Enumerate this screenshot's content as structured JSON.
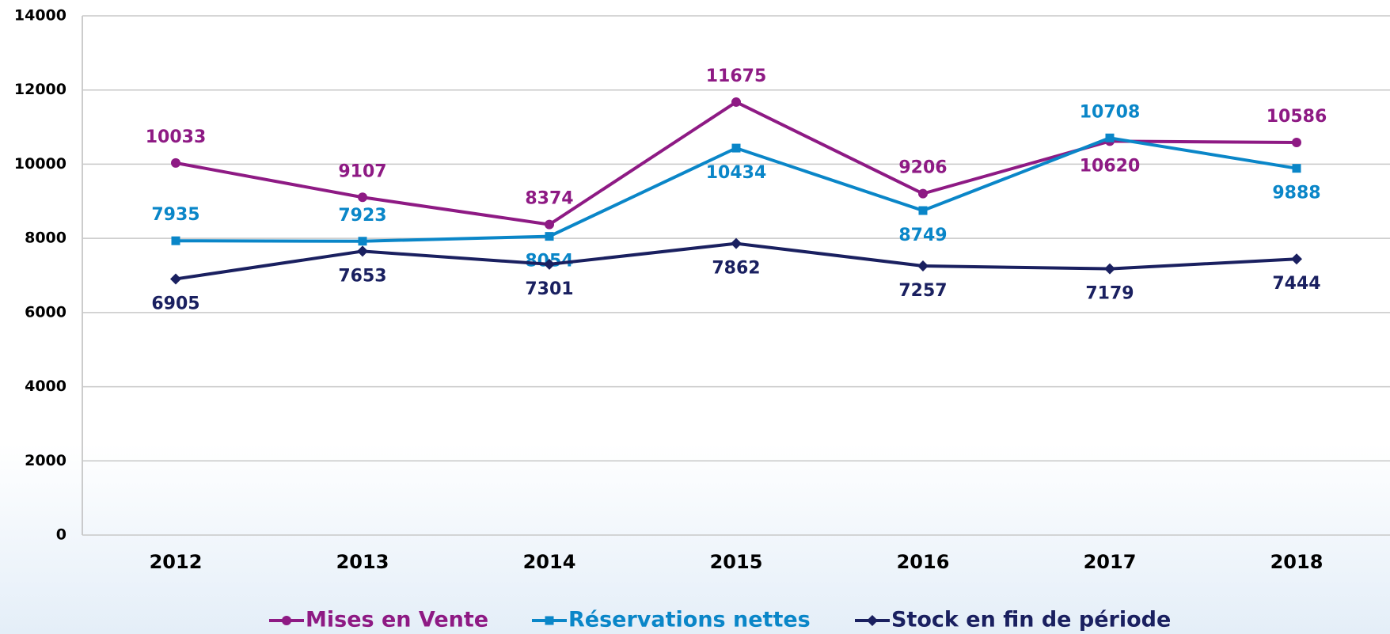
{
  "chart_data": {
    "type": "line",
    "categories": [
      "2012",
      "2013",
      "2014",
      "2015",
      "2016",
      "2017",
      "2018"
    ],
    "series": [
      {
        "name": "Mises en Vente",
        "color": "#8e1a84",
        "values": [
          10033,
          9107,
          8374,
          11675,
          9206,
          10620,
          10586
        ]
      },
      {
        "name": "Réservations nettes",
        "color": "#0a86c8",
        "values": [
          7935,
          7923,
          8054,
          10434,
          8749,
          10708,
          9888
        ]
      },
      {
        "name": "Stock en fin de période",
        "color": "#1a2060",
        "values": [
          6905,
          7653,
          7301,
          7862,
          7257,
          7179,
          7444
        ]
      }
    ],
    "ylim": [
      0,
      14000
    ],
    "yticks": [
      0,
      2000,
      4000,
      6000,
      8000,
      10000,
      12000,
      14000
    ],
    "grid": true,
    "legend": "bottom"
  }
}
